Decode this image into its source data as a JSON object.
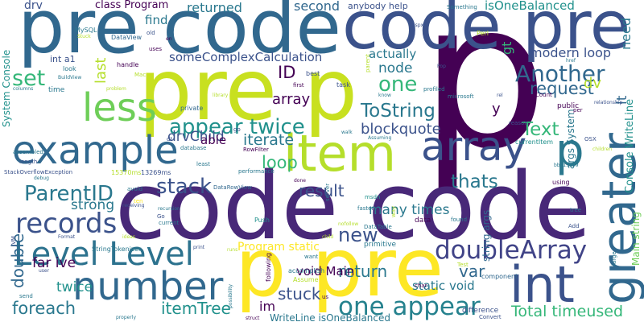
{
  "palette": {
    "deep_purple": "#440154",
    "purple": "#482878",
    "indigo": "#3b528b",
    "blue": "#31688e",
    "steel": "#2a788e",
    "teal": "#21918c",
    "sea_green": "#1f9e89",
    "green": "#35b779",
    "light_green": "#6ece58",
    "lime": "#b5de2b",
    "yellow": "#fde725"
  },
  "words": [
    {
      "text": "p",
      "color": "#440154"
    },
    {
      "text": "code code",
      "color": "#482878"
    },
    {
      "text": "pre p",
      "color": "#c8e020"
    },
    {
      "text": "pre code",
      "color": "#31688e"
    },
    {
      "text": "code pre",
      "color": "#3b528b"
    },
    {
      "text": "p pre",
      "color": "#fde725"
    },
    {
      "text": "item",
      "color": "#b5de2b"
    },
    {
      "text": "example",
      "color": "#31688e"
    },
    {
      "text": "array",
      "color": "#3b528b"
    },
    {
      "text": "number",
      "color": "#31688e"
    },
    {
      "text": "int",
      "color": "#3b528b"
    },
    {
      "text": "greater",
      "color": "#31688e"
    },
    {
      "text": "less",
      "color": "#6ece58"
    },
    {
      "text": "Level Level",
      "color": "#2c728e"
    },
    {
      "text": "p",
      "color": "#2a788e"
    },
    {
      "text": "records",
      "color": "#3b528b"
    },
    {
      "text": "appear twice",
      "color": "#21918c"
    },
    {
      "text": "doubleArray",
      "color": "#404387"
    },
    {
      "text": "one appear",
      "color": "#26828e"
    },
    {
      "text": "ParentID",
      "color": "#2a788e"
    },
    {
      "text": "stack",
      "color": "#3b528b"
    },
    {
      "text": "set",
      "color": "#35b779"
    },
    {
      "text": "Another",
      "color": "#31688e"
    },
    {
      "text": "ToString",
      "color": "#2a788e"
    },
    {
      "text": "one",
      "color": "#35b779"
    },
    {
      "text": "node",
      "color": "#2a788e"
    },
    {
      "text": "ID",
      "color": "#440154"
    },
    {
      "text": "request",
      "color": "#31688e"
    },
    {
      "text": "Text",
      "color": "#35b779"
    },
    {
      "text": "thats",
      "color": "#2a788e"
    },
    {
      "text": "loop",
      "color": "#35b779"
    },
    {
      "text": "foreach",
      "color": "#2a788e"
    },
    {
      "text": "itemTree",
      "color": "#21918c"
    },
    {
      "text": "stuck",
      "color": "#3b528b"
    },
    {
      "text": "Total timeused",
      "color": "#35b779"
    },
    {
      "text": "new",
      "color": "#3b528b"
    },
    {
      "text": "result",
      "color": "#3b528b"
    },
    {
      "text": "return",
      "color": "#2a788e"
    },
    {
      "text": "var",
      "color": "#31688e"
    },
    {
      "text": "array",
      "color": "#440154"
    },
    {
      "text": "iterate",
      "color": "#2a788e"
    },
    {
      "text": "blockquote",
      "color": "#3b528b"
    },
    {
      "text": "double",
      "color": "#31688e"
    },
    {
      "text": "twice",
      "color": "#21918c"
    },
    {
      "text": "far ive",
      "color": "#440154"
    },
    {
      "text": "strong",
      "color": "#2a788e"
    },
    {
      "text": "drvChild",
      "color": "#3b528b"
    },
    {
      "text": "able",
      "color": "#440154"
    },
    {
      "text": "actually",
      "color": "#2a788e"
    },
    {
      "text": "someComplexCalculation",
      "color": "#3b528b"
    },
    {
      "text": "returned",
      "color": "#2a788e"
    },
    {
      "text": "second",
      "color": "#31688e"
    },
    {
      "text": "isOneBalanced",
      "color": "#21918c"
    },
    {
      "text": "class Program",
      "color": "#440154"
    },
    {
      "text": "find",
      "color": "#2a788e"
    },
    {
      "text": "drv",
      "color": "#3b528b"
    },
    {
      "text": "need",
      "color": "#2a788e"
    },
    {
      "text": "modern loop",
      "color": "#3b528b"
    },
    {
      "text": "last",
      "color": "#b5de2b"
    },
    {
      "text": "gt",
      "color": "#35b779"
    },
    {
      "text": "lt",
      "color": "#31688e"
    },
    {
      "text": "dv",
      "color": "#b5de2b"
    },
    {
      "text": "y",
      "color": "#440154"
    },
    {
      "text": "many times",
      "color": "#2a788e"
    },
    {
      "text": "void Main",
      "color": "#440154"
    },
    {
      "text": "static void",
      "color": "#2a788e"
    },
    {
      "text": "Program static",
      "color": "#fde725"
    },
    {
      "text": "WriteLine isOneBalanced",
      "color": "#2a788e"
    },
    {
      "text": "im",
      "color": "#440154"
    },
    {
      "text": "Console WriteLine",
      "color": "#21918c"
    },
    {
      "text": "Main string",
      "color": "#6ece58"
    },
    {
      "text": "System Console",
      "color": "#21918c"
    },
    {
      "text": "string args",
      "color": "#31688e"
    },
    {
      "text": "args System",
      "color": "#2a788e"
    },
    {
      "text": "int a1",
      "color": "#3b528b"
    },
    {
      "text": "anybody help",
      "color": "#3b528b"
    },
    {
      "text": "MySQL",
      "color": "#2a788e"
    },
    {
      "text": "DataView",
      "color": "#31688e"
    },
    {
      "text": "Something",
      "color": "#2a788e"
    },
    {
      "text": "StackOverflowException",
      "color": "#3b528b"
    },
    {
      "text": "DataRowView",
      "color": "#31688e"
    },
    {
      "text": "RowFilter",
      "color": "#440154"
    },
    {
      "text": "StringTokenizer",
      "color": "#2a788e"
    },
    {
      "text": "DataTable",
      "color": "#2a788e"
    },
    {
      "text": "Assume",
      "color": "#b5de2b"
    },
    {
      "text": "accomplish",
      "color": "#2a788e"
    },
    {
      "text": "following",
      "color": "#440154"
    },
    {
      "text": "currentItem",
      "color": "#21918c"
    },
    {
      "text": "performance",
      "color": "#2a788e"
    },
    {
      "text": "primitive",
      "color": "#2a788e"
    },
    {
      "text": "difference",
      "color": "#3b528b"
    },
    {
      "text": "component",
      "color": "#31688e"
    },
    {
      "text": "database",
      "color": "#2a788e"
    },
    {
      "text": "relationship",
      "color": "#3b528b"
    },
    {
      "text": "microsoft",
      "color": "#2a788e"
    },
    {
      "text": "private",
      "color": "#31688e"
    },
    {
      "text": "public",
      "color": "#440154"
    },
    {
      "text": "handle",
      "color": "#440154"
    },
    {
      "text": "look",
      "color": "#2a788e"
    },
    {
      "text": "time",
      "color": "#2a788e"
    },
    {
      "text": "uses",
      "color": "#440154"
    },
    {
      "text": "best",
      "color": "#3b528b"
    },
    {
      "text": "task",
      "color": "#3b528b"
    },
    {
      "text": "first",
      "color": "#440154"
    },
    {
      "text": "Count",
      "color": "#440154"
    },
    {
      "text": "Perl",
      "color": "#b5de2b"
    },
    {
      "text": "aspx",
      "color": "#3b528b"
    },
    {
      "text": "href",
      "color": "#2a788e"
    },
    {
      "text": "Pop",
      "color": "#3b528b"
    },
    {
      "text": "reason",
      "color": "#3b528b"
    },
    {
      "text": "Push",
      "color": "#21918c"
    },
    {
      "text": "faster",
      "color": "#2a788e"
    },
    {
      "text": "data",
      "color": "#440154"
    },
    {
      "text": "found",
      "color": "#2a788e"
    },
    {
      "text": "want",
      "color": "#2a788e"
    },
    {
      "text": "Convert",
      "color": "#3b528b"
    },
    {
      "text": "char",
      "color": "#440154"
    },
    {
      "text": "Test",
      "color": "#b5de2b"
    },
    {
      "text": "Format",
      "color": "#3b528b"
    },
    {
      "text": "ten",
      "color": "#fde725"
    },
    {
      "text": "using",
      "color": "#440154"
    },
    {
      "text": "tree",
      "color": "#2a788e"
    },
    {
      "text": "Add",
      "color": "#3b528b"
    },
    {
      "text": "msdn",
      "color": "#21918c"
    },
    {
      "text": "done",
      "color": "#440154"
    },
    {
      "text": "server",
      "color": "#2a788e"
    },
    {
      "text": "walk",
      "color": "#2a788e"
    },
    {
      "text": "least",
      "color": "#2a788e"
    },
    {
      "text": "OSX",
      "color": "#3b528b"
    },
    {
      "text": "Mac",
      "color": "#b5de2b"
    },
    {
      "text": "old",
      "color": "#3b528b"
    },
    {
      "text": "en",
      "color": "#440154"
    },
    {
      "text": "dt",
      "color": "#3b528b"
    },
    {
      "text": "us",
      "color": "#440154"
    },
    {
      "text": "go",
      "color": "#3b528b"
    },
    {
      "text": "Go",
      "color": "#3b528b"
    },
    {
      "text": "send",
      "color": "#2a788e"
    },
    {
      "text": "user",
      "color": "#3b528b"
    },
    {
      "text": "15370ms",
      "color": "#b5de2b"
    },
    {
      "text": "13269ms",
      "color": "#3b528b"
    },
    {
      "text": "recursion",
      "color": "#2a788e"
    },
    {
      "text": "avoid",
      "color": "#2a788e"
    },
    {
      "text": "receiving",
      "color": "#3b528b"
    },
    {
      "text": "current",
      "color": "#2a788e"
    },
    {
      "text": "length",
      "color": "#3b528b"
    },
    {
      "text": "assembled",
      "color": "#2a788e"
    },
    {
      "text": "problem",
      "color": "#b5de2b"
    },
    {
      "text": "library",
      "color": "#b5de2b"
    },
    {
      "text": "BuildView",
      "color": "#2a788e"
    },
    {
      "text": "columns",
      "color": "#2a788e"
    },
    {
      "text": "debug",
      "color": "#2a788e"
    },
    {
      "text": "JVM",
      "color": "#3b528b"
    },
    {
      "text": "ideas",
      "color": "#b5de2b"
    },
    {
      "text": "runs",
      "color": "#b5de2b"
    },
    {
      "text": "possibility",
      "color": "#2a788e"
    },
    {
      "text": "struct",
      "color": "#440154"
    },
    {
      "text": "properly",
      "color": "#2a788e"
    },
    {
      "text": "profiled",
      "color": "#2a788e"
    },
    {
      "text": "Assuming",
      "color": "#2a788e"
    },
    {
      "text": "rel",
      "color": "#3b528b"
    },
    {
      "text": "parent",
      "color": "#b5de2b"
    },
    {
      "text": "children",
      "color": "#b5de2b"
    },
    {
      "text": "large",
      "color": "#2a788e"
    },
    {
      "text": "nofollow",
      "color": "#b5de2b"
    },
    {
      "text": "way",
      "color": "#b5de2b"
    },
    {
      "text": "print",
      "color": "#3b528b"
    },
    {
      "text": "child",
      "color": "#b5de2b"
    },
    {
      "text": "per",
      "color": "#440154"
    },
    {
      "text": "Stuck",
      "color": "#b5de2b"
    },
    {
      "text": "bb513869",
      "color": "#2a788e"
    },
    {
      "text": "know",
      "color": "#2a788e"
    }
  ]
}
